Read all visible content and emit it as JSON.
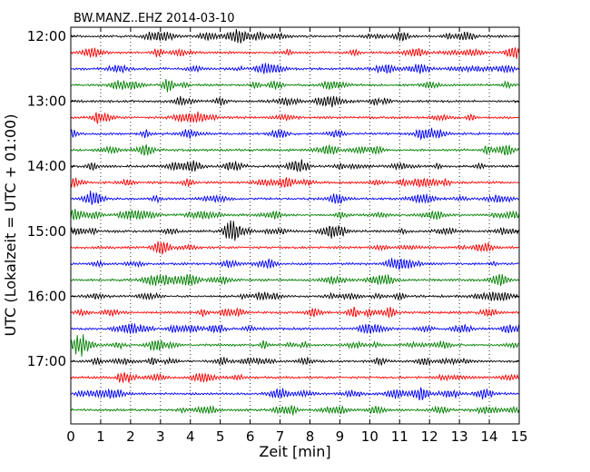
{
  "chart_data": {
    "type": "line",
    "title": "BW.MANZ..EHZ 2014-03-10",
    "xlabel": "Zeit  [min]",
    "ylabel": "UTC (Lokalzeit = UTC + 01:00)",
    "xlim": [
      0,
      15
    ],
    "x_ticks": [
      0,
      1,
      2,
      3,
      4,
      5,
      6,
      7,
      8,
      9,
      10,
      11,
      12,
      13,
      14,
      15
    ],
    "y_tick_labels": [
      "12:00",
      "13:00",
      "14:00",
      "15:00",
      "16:00",
      "17:00"
    ],
    "vertical_grid": "dotted",
    "trace_start": "12:00",
    "trace_interval_min": 15,
    "trace_count": 24,
    "trace_colors": [
      "#000000",
      "#ff0000",
      "#0000ff",
      "#008000"
    ],
    "traces_per_hour": 4,
    "trace_amplitude": 1.0
  }
}
